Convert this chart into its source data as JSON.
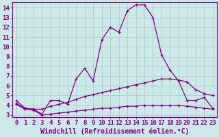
{
  "xlabel": "Windchill (Refroidissement éolien,°C)",
  "bg_color": "#cce8e8",
  "line_color": "#800080",
  "grid_color": "#a8caca",
  "axis_color": "#800080",
  "ylim": [
    2.8,
    14.6
  ],
  "xlim": [
    -0.5,
    23.5
  ],
  "yticks": [
    3,
    4,
    5,
    6,
    7,
    8,
    9,
    10,
    11,
    12,
    13,
    14
  ],
  "xticks": [
    0,
    1,
    2,
    3,
    4,
    5,
    6,
    7,
    8,
    9,
    10,
    11,
    12,
    13,
    14,
    15,
    16,
    17,
    18,
    19,
    20,
    21,
    22,
    23
  ],
  "line1_x": [
    0,
    1,
    2,
    3,
    4,
    5,
    6,
    7,
    8,
    9,
    10,
    11,
    12,
    13,
    14,
    15,
    16,
    17,
    18,
    19,
    20,
    21,
    22,
    23
  ],
  "line1_y": [
    4.5,
    3.7,
    3.6,
    3.1,
    4.5,
    4.5,
    4.1,
    6.7,
    7.8,
    6.5,
    10.7,
    12.0,
    11.5,
    13.7,
    14.3,
    14.3,
    13.0,
    9.2,
    7.6,
    6.5,
    4.5,
    4.5,
    4.8,
    3.7
  ],
  "line2_x": [
    0,
    1,
    2,
    3,
    4,
    5,
    6,
    7,
    8,
    9,
    10,
    11,
    12,
    13,
    14,
    15,
    16,
    17,
    18,
    19,
    20,
    21,
    22,
    23
  ],
  "line2_y": [
    4.2,
    3.7,
    3.6,
    3.6,
    3.9,
    4.1,
    4.3,
    4.6,
    4.9,
    5.1,
    5.3,
    5.5,
    5.7,
    5.9,
    6.1,
    6.3,
    6.5,
    6.7,
    6.7,
    6.6,
    6.4,
    5.6,
    5.2,
    5.0
  ],
  "line3_x": [
    0,
    1,
    2,
    3,
    4,
    5,
    6,
    7,
    8,
    9,
    10,
    11,
    12,
    13,
    14,
    15,
    16,
    17,
    18,
    19,
    20,
    21,
    22,
    23
  ],
  "line3_y": [
    4.1,
    3.6,
    3.5,
    3.0,
    3.1,
    3.2,
    3.3,
    3.4,
    3.5,
    3.6,
    3.7,
    3.7,
    3.8,
    3.9,
    3.9,
    4.0,
    4.0,
    4.0,
    4.0,
    4.0,
    3.9,
    3.8,
    3.7,
    3.6
  ],
  "font_color": "#800080",
  "tick_fontsize": 6.5,
  "label_fontsize": 7,
  "marker": "+"
}
